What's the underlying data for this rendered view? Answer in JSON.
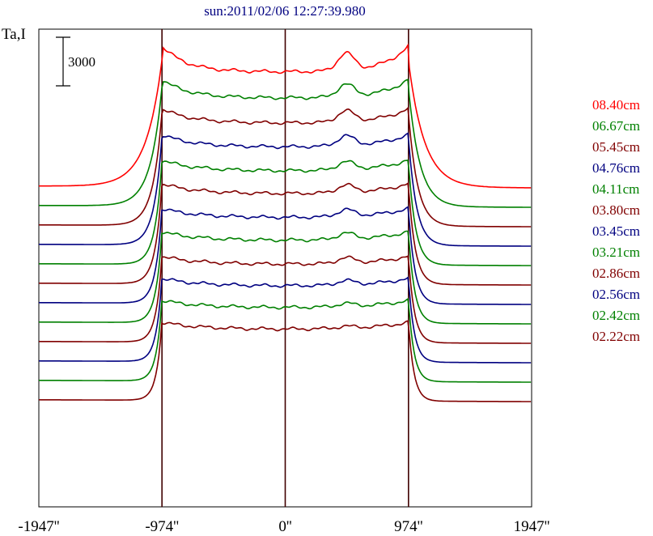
{
  "chart_data": {
    "type": "line",
    "title": "sun:2011/02/06 12:27:39.980",
    "ylabel": "Ta,I",
    "scale_bar": {
      "value": 3000,
      "label": "3000"
    },
    "x_ticks": [
      {
        "value": -1947,
        "label": "-1947''"
      },
      {
        "value": -974,
        "label": "-974''"
      },
      {
        "value": 0,
        "label": "0''"
      },
      {
        "value": 974,
        "label": "974''"
      },
      {
        "value": 1947,
        "label": "1947''"
      }
    ],
    "xlim": [
      -1947,
      1947
    ],
    "vertical_lines": [
      -974,
      0,
      974
    ],
    "colors": {
      "red": "#ff0000",
      "green": "#008000",
      "darkred": "#800000",
      "blue": "#000080"
    },
    "series": [
      {
        "name": "08.40cm",
        "color": "red",
        "baseline": 0,
        "profile": "limb",
        "amp": 10400,
        "edge": 1600,
        "bump": 1400
      },
      {
        "name": "06.67cm",
        "color": "green",
        "baseline": -1200,
        "profile": "limb",
        "amp": 9800,
        "edge": 1000,
        "bump": 1000
      },
      {
        "name": "05.45cm",
        "color": "darkred",
        "baseline": -2400,
        "profile": "limb",
        "amp": 9300,
        "edge": 700,
        "bump": 900
      },
      {
        "name": "04.76cm",
        "color": "blue",
        "baseline": -3600,
        "profile": "limb",
        "amp": 8900,
        "edge": 550,
        "bump": 800
      },
      {
        "name": "04.11cm",
        "color": "green",
        "baseline": -4800,
        "profile": "limb",
        "amp": 8500,
        "edge": 420,
        "bump": 650
      },
      {
        "name": "03.80cm",
        "color": "darkred",
        "baseline": -6000,
        "profile": "limb",
        "amp": 8200,
        "edge": 380,
        "bump": 600
      },
      {
        "name": "03.45cm",
        "color": "blue",
        "baseline": -7200,
        "profile": "limb",
        "amp": 7800,
        "edge": 330,
        "bump": 550
      },
      {
        "name": "03.21cm",
        "color": "green",
        "baseline": -8400,
        "profile": "limb",
        "amp": 7500,
        "edge": 300,
        "bump": 500
      },
      {
        "name": "02.86cm",
        "color": "darkred",
        "baseline": -9600,
        "profile": "limb",
        "amp": 7100,
        "edge": 270,
        "bump": 450
      },
      {
        "name": "02.56cm",
        "color": "blue",
        "baseline": -10800,
        "profile": "limb",
        "amp": 6900,
        "edge": 250,
        "bump": 350
      },
      {
        "name": "02.42cm",
        "color": "green",
        "baseline": -12000,
        "profile": "limb",
        "amp": 6700,
        "edge": 230,
        "bump": 250
      },
      {
        "name": "02.22cm",
        "color": "darkred",
        "baseline": -13200,
        "profile": "limb",
        "amp": 6500,
        "edge": 220,
        "bump": 150
      }
    ]
  }
}
